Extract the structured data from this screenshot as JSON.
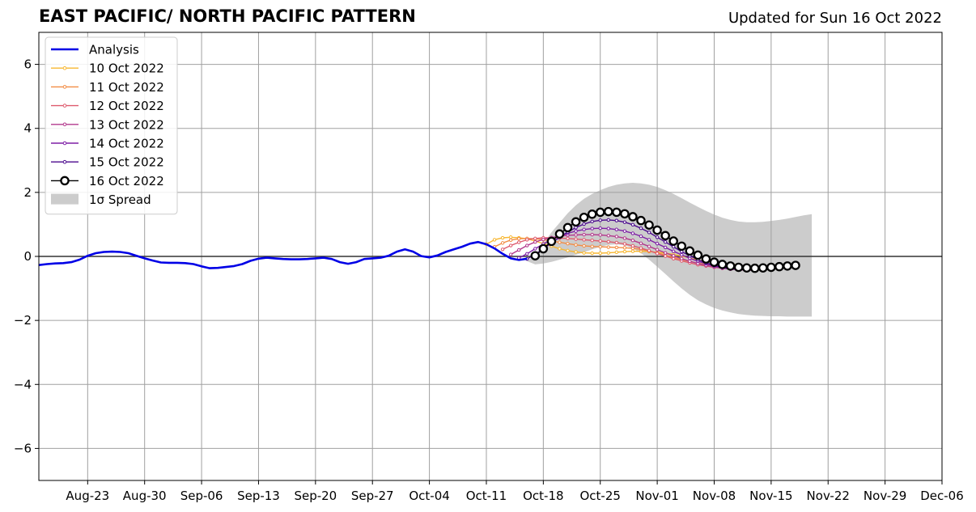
{
  "header": {
    "title": "EAST PACIFIC/ NORTH PACIFIC PATTERN",
    "updated": "Updated for Sun 16 Oct 2022"
  },
  "chart_data": {
    "type": "line",
    "title": "EAST PACIFIC/ NORTH PACIFIC PATTERN",
    "subtitle": "Updated for Sun 16 Oct 2022",
    "xlabel": "",
    "ylabel": "",
    "x_range": [
      "2022-08-17",
      "2022-12-06"
    ],
    "ylim": [
      -7,
      7
    ],
    "x_ticks": [
      {
        "date": "2022-08-23",
        "label": "Aug-23"
      },
      {
        "date": "2022-08-30",
        "label": "Aug-30"
      },
      {
        "date": "2022-09-06",
        "label": "Sep-06"
      },
      {
        "date": "2022-09-13",
        "label": "Sep-13"
      },
      {
        "date": "2022-09-20",
        "label": "Sep-20"
      },
      {
        "date": "2022-09-27",
        "label": "Sep-27"
      },
      {
        "date": "2022-10-04",
        "label": "Oct-04"
      },
      {
        "date": "2022-10-11",
        "label": "Oct-11"
      },
      {
        "date": "2022-10-18",
        "label": "Oct-18"
      },
      {
        "date": "2022-10-25",
        "label": "Oct-25"
      },
      {
        "date": "2022-11-01",
        "label": "Nov-01"
      },
      {
        "date": "2022-11-08",
        "label": "Nov-08"
      },
      {
        "date": "2022-11-15",
        "label": "Nov-15"
      },
      {
        "date": "2022-11-22",
        "label": "Nov-22"
      },
      {
        "date": "2022-11-29",
        "label": "Nov-29"
      },
      {
        "date": "2022-12-06",
        "label": "Dec-06"
      }
    ],
    "y_ticks": [
      {
        "value": -6,
        "label": "−6"
      },
      {
        "value": -4,
        "label": "−4"
      },
      {
        "value": -2,
        "label": "−2"
      },
      {
        "value": 0,
        "label": "0"
      },
      {
        "value": 2,
        "label": "2"
      },
      {
        "value": 4,
        "label": "4"
      },
      {
        "value": 6,
        "label": "6"
      }
    ],
    "grid": true,
    "zero_line": true,
    "legend_position": "top-left",
    "analysis": {
      "name": "Analysis",
      "color": "#0000e6",
      "points": [
        [
          "2022-08-17",
          -0.27
        ],
        [
          "2022-08-18",
          -0.24
        ],
        [
          "2022-08-19",
          -0.22
        ],
        [
          "2022-08-20",
          -0.21
        ],
        [
          "2022-08-21",
          -0.18
        ],
        [
          "2022-08-22",
          -0.1
        ],
        [
          "2022-08-23",
          0.02
        ],
        [
          "2022-08-24",
          0.1
        ],
        [
          "2022-08-25",
          0.14
        ],
        [
          "2022-08-26",
          0.15
        ],
        [
          "2022-08-27",
          0.14
        ],
        [
          "2022-08-28",
          0.1
        ],
        [
          "2022-08-29",
          0.02
        ],
        [
          "2022-08-30",
          -0.06
        ],
        [
          "2022-08-31",
          -0.13
        ],
        [
          "2022-09-01",
          -0.19
        ],
        [
          "2022-09-02",
          -0.2
        ],
        [
          "2022-09-03",
          -0.2
        ],
        [
          "2022-09-04",
          -0.21
        ],
        [
          "2022-09-05",
          -0.24
        ],
        [
          "2022-09-06",
          -0.31
        ],
        [
          "2022-09-07",
          -0.37
        ],
        [
          "2022-09-08",
          -0.36
        ],
        [
          "2022-09-09",
          -0.33
        ],
        [
          "2022-09-10",
          -0.3
        ],
        [
          "2022-09-11",
          -0.24
        ],
        [
          "2022-09-12",
          -0.14
        ],
        [
          "2022-09-13",
          -0.07
        ],
        [
          "2022-09-14",
          -0.04
        ],
        [
          "2022-09-15",
          -0.06
        ],
        [
          "2022-09-16",
          -0.08
        ],
        [
          "2022-09-17",
          -0.09
        ],
        [
          "2022-09-18",
          -0.09
        ],
        [
          "2022-09-19",
          -0.08
        ],
        [
          "2022-09-20",
          -0.06
        ],
        [
          "2022-09-21",
          -0.04
        ],
        [
          "2022-09-22",
          -0.08
        ],
        [
          "2022-09-23",
          -0.18
        ],
        [
          "2022-09-24",
          -0.23
        ],
        [
          "2022-09-25",
          -0.18
        ],
        [
          "2022-09-26",
          -0.08
        ],
        [
          "2022-09-27",
          -0.06
        ],
        [
          "2022-09-28",
          -0.04
        ],
        [
          "2022-09-29",
          0.02
        ],
        [
          "2022-09-30",
          0.15
        ],
        [
          "2022-10-01",
          0.22
        ],
        [
          "2022-10-02",
          0.15
        ],
        [
          "2022-10-03",
          0.01
        ],
        [
          "2022-10-04",
          -0.03
        ],
        [
          "2022-10-05",
          0.03
        ],
        [
          "2022-10-06",
          0.14
        ],
        [
          "2022-10-07",
          0.22
        ],
        [
          "2022-10-08",
          0.3
        ],
        [
          "2022-10-09",
          0.4
        ],
        [
          "2022-10-10",
          0.45
        ],
        [
          "2022-10-11",
          0.38
        ],
        [
          "2022-10-12",
          0.25
        ],
        [
          "2022-10-13",
          0.08
        ],
        [
          "2022-10-14",
          -0.06
        ],
        [
          "2022-10-15",
          -0.11
        ],
        [
          "2022-10-16",
          -0.07
        ]
      ]
    },
    "forecasts": [
      {
        "name": "10 Oct 2022",
        "color": "#f7b731",
        "start": "2022-10-11",
        "values": [
          0.38,
          0.52,
          0.58,
          0.6,
          0.58,
          0.55,
          0.48,
          0.4,
          0.32,
          0.24,
          0.18,
          0.14,
          0.11,
          0.1,
          0.1,
          0.11,
          0.13,
          0.15,
          0.16,
          0.16,
          0.15,
          0.13,
          0.1,
          0.06,
          0.01,
          -0.05,
          -0.11,
          -0.16,
          -0.2,
          -0.23,
          -0.25,
          -0.26
        ]
      },
      {
        "name": "11 Oct 2022",
        "color": "#f28c44",
        "start": "2022-10-12",
        "values": [
          0.3,
          0.42,
          0.51,
          0.55,
          0.56,
          0.55,
          0.52,
          0.48,
          0.44,
          0.4,
          0.36,
          0.33,
          0.31,
          0.3,
          0.29,
          0.28,
          0.27,
          0.25,
          0.22,
          0.17,
          0.11,
          0.04,
          -0.03,
          -0.1,
          -0.16,
          -0.21,
          -0.25,
          -0.28,
          -0.3,
          -0.32,
          -0.33,
          -0.34
        ]
      },
      {
        "name": "12 Oct 2022",
        "color": "#de5b6e",
        "start": "2022-10-13",
        "values": [
          0.22,
          0.34,
          0.44,
          0.52,
          0.56,
          0.58,
          0.58,
          0.57,
          0.56,
          0.54,
          0.52,
          0.5,
          0.48,
          0.46,
          0.43,
          0.39,
          0.33,
          0.26,
          0.18,
          0.09,
          0.01,
          -0.07,
          -0.14,
          -0.2,
          -0.26,
          -0.3,
          -0.34,
          -0.37,
          -0.39,
          -0.4,
          -0.41,
          -0.41
        ]
      },
      {
        "name": "13 Oct 2022",
        "color": "#b3398d",
        "start": "2022-10-14",
        "values": [
          0.06,
          0.2,
          0.34,
          0.45,
          0.53,
          0.59,
          0.63,
          0.66,
          0.67,
          0.68,
          0.68,
          0.67,
          0.65,
          0.62,
          0.57,
          0.5,
          0.41,
          0.31,
          0.21,
          0.11,
          0.02,
          -0.07,
          -0.15,
          -0.22,
          -0.28,
          -0.33,
          -0.37,
          -0.4,
          -0.42,
          -0.43,
          -0.43,
          -0.42
        ]
      },
      {
        "name": "14 Oct 2022",
        "color": "#7e1ea6",
        "start": "2022-10-15",
        "values": [
          -0.05,
          0.08,
          0.24,
          0.39,
          0.52,
          0.63,
          0.72,
          0.79,
          0.84,
          0.87,
          0.88,
          0.87,
          0.84,
          0.79,
          0.72,
          0.63,
          0.52,
          0.4,
          0.28,
          0.16,
          0.05,
          -0.06,
          -0.15,
          -0.23,
          -0.3,
          -0.35,
          -0.39,
          -0.41,
          -0.42,
          -0.42,
          -0.41,
          -0.4
        ]
      },
      {
        "name": "15 Oct 2022",
        "color": "#4b0a8e",
        "start": "2022-10-16",
        "values": [
          -0.08,
          0.06,
          0.24,
          0.42,
          0.6,
          0.76,
          0.9,
          1.01,
          1.09,
          1.13,
          1.14,
          1.12,
          1.07,
          0.99,
          0.88,
          0.75,
          0.6,
          0.45,
          0.3,
          0.15,
          0.02,
          -0.1,
          -0.2,
          -0.28,
          -0.34,
          -0.38,
          -0.4,
          -0.41,
          -0.4,
          -0.39,
          -0.37,
          -0.35
        ]
      },
      {
        "name": "16 Oct 2022",
        "color": "#000000",
        "start": "2022-10-17",
        "values": [
          0.02,
          0.24,
          0.47,
          0.7,
          0.9,
          1.08,
          1.22,
          1.32,
          1.38,
          1.4,
          1.38,
          1.33,
          1.24,
          1.12,
          0.98,
          0.82,
          0.65,
          0.48,
          0.32,
          0.17,
          0.04,
          -0.08,
          -0.18,
          -0.25,
          -0.3,
          -0.34,
          -0.36,
          -0.37,
          -0.36,
          -0.34,
          -0.32,
          -0.3,
          -0.28
        ]
      }
    ],
    "spread": {
      "name": "1σ Spread",
      "color": "#cccccc",
      "start": "2022-10-16",
      "upper": [
        -0.15,
        0.05,
        0.4,
        0.75,
        1.05,
        1.35,
        1.6,
        1.8,
        1.95,
        2.07,
        2.17,
        2.24,
        2.28,
        2.3,
        2.28,
        2.24,
        2.17,
        2.07,
        1.95,
        1.82,
        1.68,
        1.55,
        1.42,
        1.31,
        1.21,
        1.14,
        1.09,
        1.07,
        1.07,
        1.08,
        1.11,
        1.14,
        1.18,
        1.23,
        1.28,
        1.32
      ],
      "lower": [
        -0.15,
        -0.25,
        -0.22,
        -0.17,
        -0.1,
        -0.03,
        0.05,
        0.13,
        0.22,
        0.3,
        0.36,
        0.38,
        0.35,
        0.25,
        0.1,
        -0.1,
        -0.32,
        -0.55,
        -0.78,
        -1.0,
        -1.2,
        -1.37,
        -1.5,
        -1.61,
        -1.69,
        -1.75,
        -1.8,
        -1.83,
        -1.85,
        -1.86,
        -1.87,
        -1.87,
        -1.88,
        -1.88,
        -1.88,
        -1.88
      ]
    }
  }
}
